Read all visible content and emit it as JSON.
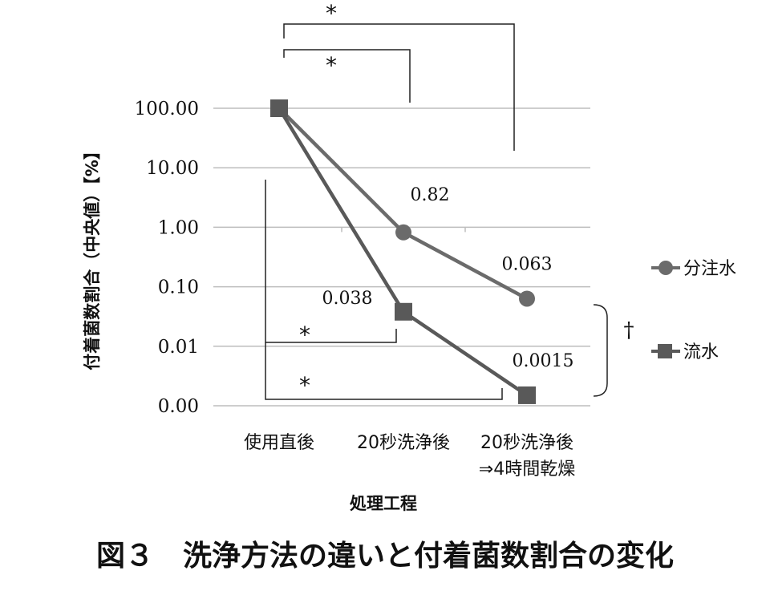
{
  "caption": "図３　洗浄方法の違いと付着菌数割合の変化",
  "chart_data": {
    "type": "line",
    "ylabel": "付着菌数割合（中央値）【%】",
    "xlabel": "処理工程",
    "y_scale": "log",
    "ylim": [
      0.001,
      100
    ],
    "y_ticks": [
      {
        "value": 100,
        "label": "100.00"
      },
      {
        "value": 10,
        "label": "10.00"
      },
      {
        "value": 1,
        "label": "1.00"
      },
      {
        "value": 0.1,
        "label": "0.10"
      },
      {
        "value": 0.01,
        "label": "0.01"
      },
      {
        "value": 0.001,
        "label": "0.00"
      }
    ],
    "categories": [
      {
        "line1": "使用直後",
        "line2": ""
      },
      {
        "line1": "20秒洗浄後",
        "line2": ""
      },
      {
        "line1": "20秒洗浄後",
        "line2": "⇒4時間乾燥"
      }
    ],
    "series": [
      {
        "name": "分注水",
        "marker": "circle",
        "color": "#6b6b6b",
        "values": [
          100,
          0.82,
          0.063
        ],
        "labels": [
          "",
          "0.82",
          "0.063"
        ]
      },
      {
        "name": "流水",
        "marker": "square",
        "color": "#595959",
        "values": [
          100,
          0.038,
          0.0015
        ],
        "labels": [
          "",
          "0.038",
          "0.0015"
        ]
      }
    ],
    "gridlines": true,
    "legend_position": "right",
    "significance": {
      "star": "*",
      "dagger": "†"
    }
  }
}
